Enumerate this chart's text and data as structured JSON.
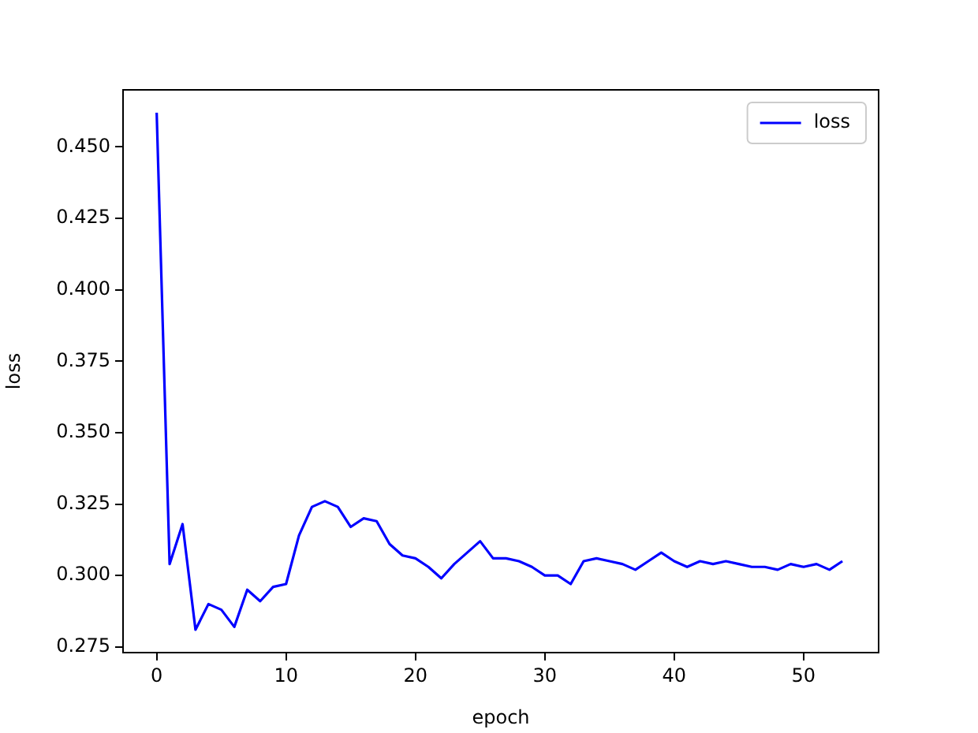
{
  "chart_data": {
    "type": "line",
    "xlabel": "epoch",
    "ylabel": "loss",
    "x": [
      0,
      1,
      2,
      3,
      4,
      5,
      6,
      7,
      8,
      9,
      10,
      11,
      12,
      13,
      14,
      15,
      16,
      17,
      18,
      19,
      20,
      21,
      22,
      23,
      24,
      25,
      26,
      27,
      28,
      29,
      30,
      31,
      32,
      33,
      34,
      35,
      36,
      37,
      38,
      39,
      40,
      41,
      42,
      43,
      44,
      45,
      46,
      47,
      48,
      49,
      50,
      51,
      52,
      53
    ],
    "series": [
      {
        "name": "loss",
        "color": "#0000ff",
        "values": [
          0.462,
          0.304,
          0.318,
          0.281,
          0.29,
          0.288,
          0.282,
          0.295,
          0.291,
          0.296,
          0.297,
          0.314,
          0.324,
          0.326,
          0.324,
          0.317,
          0.32,
          0.319,
          0.311,
          0.307,
          0.306,
          0.303,
          0.299,
          0.304,
          0.308,
          0.312,
          0.306,
          0.306,
          0.305,
          0.303,
          0.3,
          0.3,
          0.297,
          0.305,
          0.306,
          0.305,
          0.304,
          0.302,
          0.305,
          0.308,
          0.305,
          0.303,
          0.305,
          0.304,
          0.305,
          0.304,
          0.303,
          0.303,
          0.302,
          0.304,
          0.303,
          0.304,
          0.302,
          0.305
        ]
      }
    ],
    "xlim": [
      -2.6,
      55.8
    ],
    "xticks": [
      0,
      10,
      20,
      30,
      40,
      50
    ],
    "ylim": [
      0.273,
      0.47
    ],
    "yticks": [
      0.275,
      {
        "value": 0.3,
        "label": "0.300"
      },
      0.325,
      {
        "value": 0.35,
        "label": "0.350"
      },
      0.375,
      {
        "value": 0.4,
        "label": "0.400"
      },
      0.425,
      {
        "value": 0.45,
        "label": "0.450"
      }
    ],
    "grid": false,
    "legend": "top right",
    "marker": "none",
    "line_style": "solid"
  }
}
